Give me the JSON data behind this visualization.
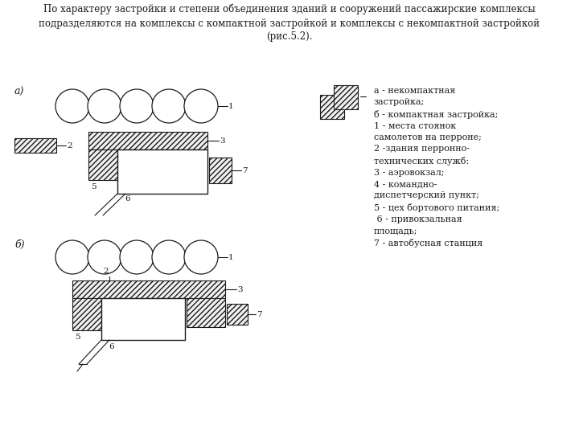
{
  "title_text": "По характеру застройки и степени объединения зданий и сооружений пассажирские комплексы\nподразделяются на комплексы с компактной застройкой и комплексы с некомпактной застройкой\n(рис.5.2).",
  "legend_lines": [
    "а - некомпактная",
    "застройка;",
    "б - компактная застройка;",
    "1 - места стоянок",
    "самолетов на перроне;",
    "2 -здания перронно-",
    "технических служб:",
    "3 - аэровокзал;",
    "4 - командно-",
    "диспетчерский пункт;",
    "5 - цех бортового питания;",
    " 6 - привокзальная",
    "площадь;",
    "7 - автобусная станция"
  ],
  "bg_color": "#ffffff",
  "line_color": "#1a1a1a",
  "label_a": "а)",
  "label_b": "б)"
}
